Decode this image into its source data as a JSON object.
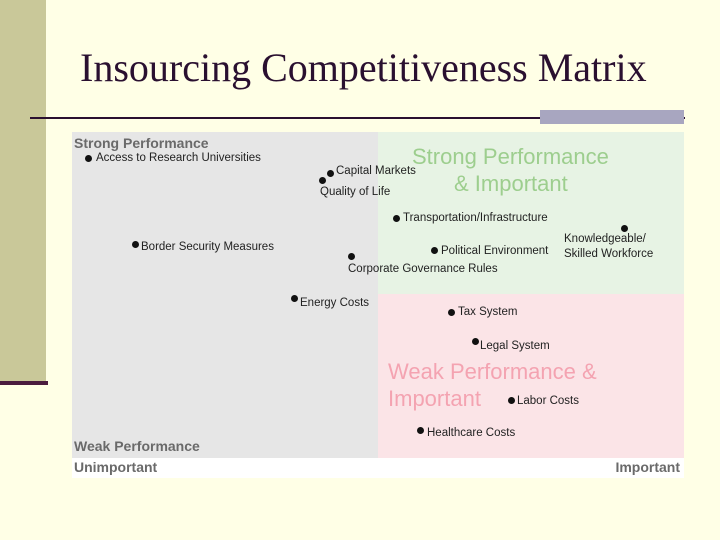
{
  "slide": {
    "title": "Insourcing Competitiveness Matrix"
  },
  "matrix": {
    "y_top_label": "Strong Performance",
    "y_bottom_label": "Weak Performance",
    "x_left_label": "Unimportant",
    "x_right_label": "Important",
    "quadrant_top_right_lines": [
      "Strong Performance",
      "& Important"
    ],
    "quadrant_bottom_right_lines": [
      "Weak Performance &",
      "Important"
    ],
    "colors": {
      "left_zone": "#e6e6e6",
      "strong_important_zone": "#e7f3e4",
      "weak_important_zone": "#fbe4e7",
      "green_text": "#9dce8e",
      "pink_text": "#f4a3b1"
    },
    "items": [
      "Access to Research Universities",
      "Capital Markets",
      "Quality of Life",
      "Transportation/Infrastructure",
      "Border Security Measures",
      "Political Environment",
      "Knowledgeable/ Skilled Workforce",
      "Corporate Governance Rules",
      "Energy Costs",
      "Tax System",
      "Legal System",
      "Labor Costs",
      "Healthcare Costs"
    ]
  }
}
